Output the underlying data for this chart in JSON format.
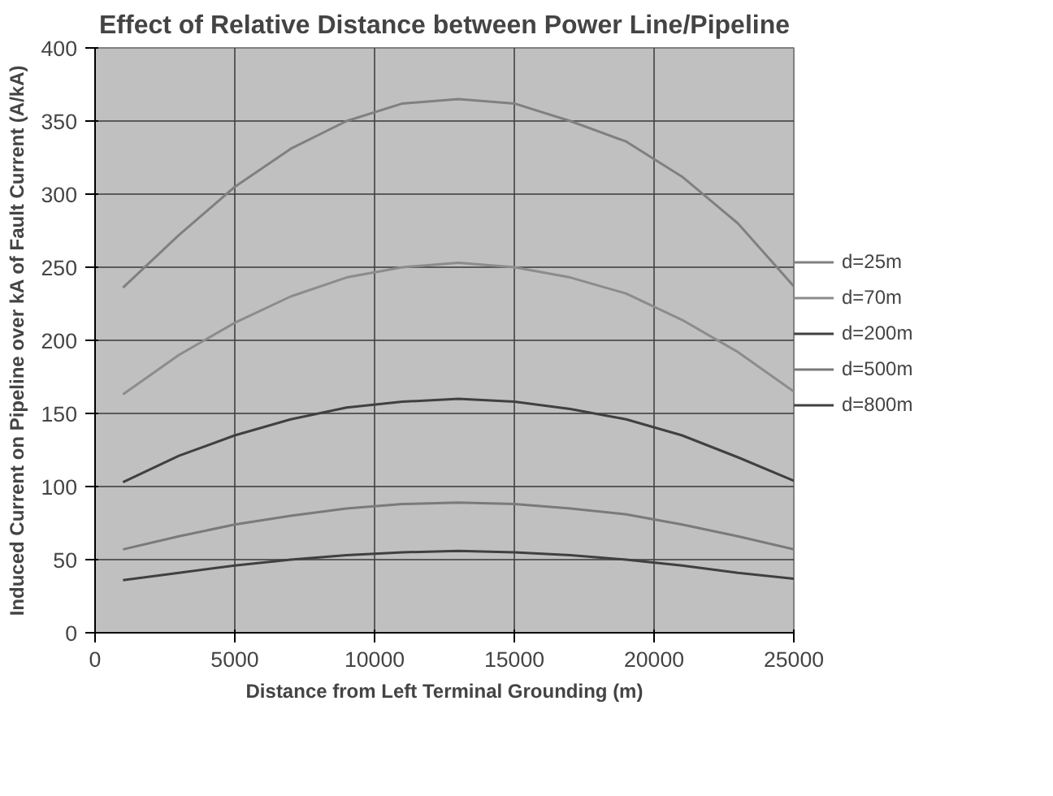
{
  "chart_data": {
    "type": "line",
    "title": "Effect of Relative Distance between Power Line/Pipeline",
    "xlabel": "Distance from Left Terminal Grounding (m)",
    "ylabel": "Induced Current on Pipeline over kA of Fault Current (A/kA)",
    "x": [
      1000,
      3000,
      5000,
      7000,
      9000,
      11000,
      13000,
      15000,
      17000,
      19000,
      21000,
      23000,
      25000
    ],
    "series": [
      {
        "name": "d=25m",
        "color": "#808080",
        "values": [
          236,
          272,
          305,
          331,
          350,
          362,
          365,
          362,
          350,
          336,
          312,
          280,
          237
        ]
      },
      {
        "name": "d=70m",
        "color": "#8c8c8c",
        "values": [
          163,
          190,
          212,
          230,
          243,
          250,
          253,
          250,
          243,
          232,
          214,
          192,
          165
        ]
      },
      {
        "name": "d=200m",
        "color": "#404040",
        "values": [
          103,
          121,
          135,
          146,
          154,
          158,
          160,
          158,
          153,
          146,
          135,
          120,
          104
        ]
      },
      {
        "name": "d=500m",
        "color": "#7a7a7a",
        "values": [
          57,
          66,
          74,
          80,
          85,
          88,
          89,
          88,
          85,
          81,
          74,
          66,
          57
        ]
      },
      {
        "name": "d=800m",
        "color": "#404040",
        "values": [
          36,
          41,
          46,
          50,
          53,
          55,
          56,
          55,
          53,
          50,
          46,
          41,
          37
        ]
      }
    ],
    "xlim": [
      0,
      25000
    ],
    "xticks": [
      0,
      5000,
      10000,
      15000,
      20000,
      25000
    ],
    "ylim": [
      0,
      400
    ],
    "yticks": [
      0,
      50,
      100,
      150,
      200,
      250,
      300,
      350,
      400
    ],
    "grid": true,
    "legend": "right",
    "marker": "none",
    "line_style": "solid"
  }
}
